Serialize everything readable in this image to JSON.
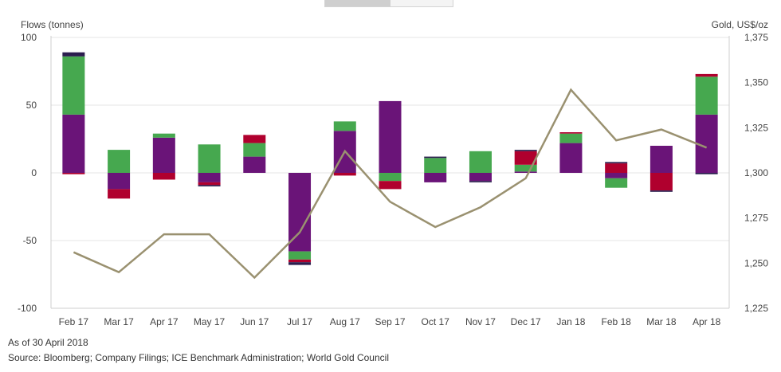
{
  "toggle": {
    "options": [
      "",
      ""
    ],
    "selected": 0
  },
  "chart_data": {
    "type": "bar",
    "stacked": true,
    "categories": [
      "Feb 17",
      "Mar 17",
      "Apr 17",
      "May 17",
      "Jun 17",
      "Jul 17",
      "Aug 17",
      "Sep 17",
      "Oct 17",
      "Nov 17",
      "Dec 17",
      "Jan 18",
      "Feb 18",
      "Mar 18",
      "Apr 18"
    ],
    "y_left": {
      "label": "Flows (tonnes)",
      "min": -100,
      "max": 100,
      "ticks": [
        100,
        50,
        0,
        -50,
        -100
      ]
    },
    "y_right": {
      "label": "Gold, US$/oz",
      "min": 1225,
      "max": 1375,
      "ticks": [
        "1,375",
        "1,350",
        "1,325",
        "1,300",
        "1,275",
        "1,250",
        "1,225"
      ]
    },
    "colors": {
      "purple": "#6a1478",
      "green": "#46a84f",
      "red": "#b0002e",
      "navy": "#2b1d4e",
      "line": "#9a9170",
      "grid": "#e4e4e4"
    },
    "series": [
      {
        "color": "purple",
        "values": [
          43,
          -12,
          26,
          -7,
          12,
          -58,
          31,
          53,
          -7,
          -6,
          1,
          22,
          -4,
          20,
          43
        ]
      },
      {
        "color": "green",
        "values": [
          43,
          17,
          3,
          21,
          10,
          -6,
          7,
          -6,
          11,
          16,
          5,
          7,
          -7,
          0,
          28
        ]
      },
      {
        "color": "red",
        "values": [
          -1,
          -7,
          -5,
          -2,
          6,
          -2,
          -2,
          -6,
          0,
          0,
          10,
          1,
          7,
          -13,
          2
        ]
      },
      {
        "color": "navy",
        "values": [
          3,
          0,
          0,
          -1,
          0,
          -2,
          0,
          0,
          1,
          -1,
          1,
          0,
          1,
          -1,
          -1
        ]
      }
    ],
    "gold_price": [
      1256,
      1245,
      1266,
      1266,
      1242,
      1267,
      1312,
      1284,
      1270,
      1281,
      1297,
      1346,
      1318,
      1324,
      1314
    ]
  },
  "footer": {
    "as_of": "As of 30 April 2018",
    "source": "Source: Bloomberg; Company Filings; ICE Benchmark Administration; World Gold Council"
  }
}
